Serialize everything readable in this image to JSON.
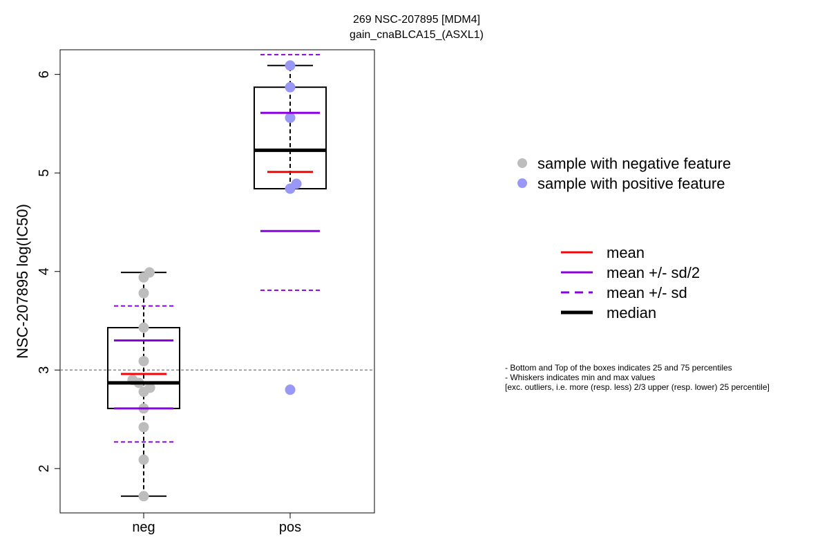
{
  "chart_data": {
    "type": "box",
    "title": [
      "269 NSC-207895 [MDM4]",
      "gain_cnaBLCA15_(ASXL1)"
    ],
    "ylabel": "NSC-207895 log(IC50)",
    "xlabel": "",
    "categories": [
      "neg",
      "pos"
    ],
    "ylim": [
      1.55,
      6.25
    ],
    "yticks": [
      2,
      3,
      4,
      5,
      6
    ],
    "reference_line": 3.0,
    "groups": [
      {
        "name": "neg",
        "color": "#bdbdbd",
        "whisker_low": 1.72,
        "q1": 2.61,
        "median": 2.87,
        "q3": 3.43,
        "whisker_high": 3.99,
        "mean": 2.96,
        "mean_minus_half_sd": 2.61,
        "mean_plus_half_sd": 3.3,
        "mean_minus_sd": 2.27,
        "mean_plus_sd": 3.65,
        "points": [
          {
            "y": 3.99,
            "jitter": 0.12
          },
          {
            "y": 3.94,
            "jitter": 0.0
          },
          {
            "y": 3.78,
            "jitter": 0.0
          },
          {
            "y": 3.43,
            "jitter": 0.0
          },
          {
            "y": 3.09,
            "jitter": 0.0
          },
          {
            "y": 2.9,
            "jitter": -0.23
          },
          {
            "y": 2.87,
            "jitter": -0.1
          },
          {
            "y": 2.82,
            "jitter": 0.13
          },
          {
            "y": 2.78,
            "jitter": 0.0
          },
          {
            "y": 2.61,
            "jitter": 0.0
          },
          {
            "y": 2.42,
            "jitter": 0.0
          },
          {
            "y": 2.09,
            "jitter": 0.0
          },
          {
            "y": 1.72,
            "jitter": 0.0
          }
        ]
      },
      {
        "name": "pos",
        "color": "#9999f5",
        "whisker_low": 4.84,
        "q1": 4.84,
        "median": 5.23,
        "q3": 5.87,
        "whisker_high": 6.09,
        "mean": 5.01,
        "mean_minus_half_sd": 4.41,
        "mean_plus_half_sd": 5.61,
        "mean_minus_sd": 3.81,
        "mean_plus_sd": 6.2,
        "points": [
          {
            "y": 6.09,
            "jitter": 0.0
          },
          {
            "y": 5.87,
            "jitter": 0.0
          },
          {
            "y": 5.56,
            "jitter": 0.0
          },
          {
            "y": 4.89,
            "jitter": 0.13
          },
          {
            "y": 4.84,
            "jitter": 0.0
          },
          {
            "y": 2.8,
            "jitter": 0.0
          }
        ]
      }
    ],
    "colors": {
      "mean": "#ff0000",
      "sd": "#8b00e0",
      "median": "#000000",
      "reference": "#808080"
    },
    "legend_points": [
      {
        "label": "sample with negative feature",
        "color": "#bdbdbd"
      },
      {
        "label": "sample with positive feature",
        "color": "#9999f5"
      }
    ],
    "legend_lines": [
      {
        "label": "mean",
        "style": "mean"
      },
      {
        "label": "mean +/- sd/2",
        "style": "half-sd"
      },
      {
        "label": "mean +/- sd",
        "style": "sd"
      },
      {
        "label": "median",
        "style": "median"
      }
    ],
    "notes": [
      "- Bottom and Top of the boxes indicates 25 and 75 percentiles",
      "- Whiskers indicates min and max values",
      "[exc. outliers, i.e. more (resp. less) 2/3 upper (resp. lower) 25 percentile]"
    ]
  }
}
